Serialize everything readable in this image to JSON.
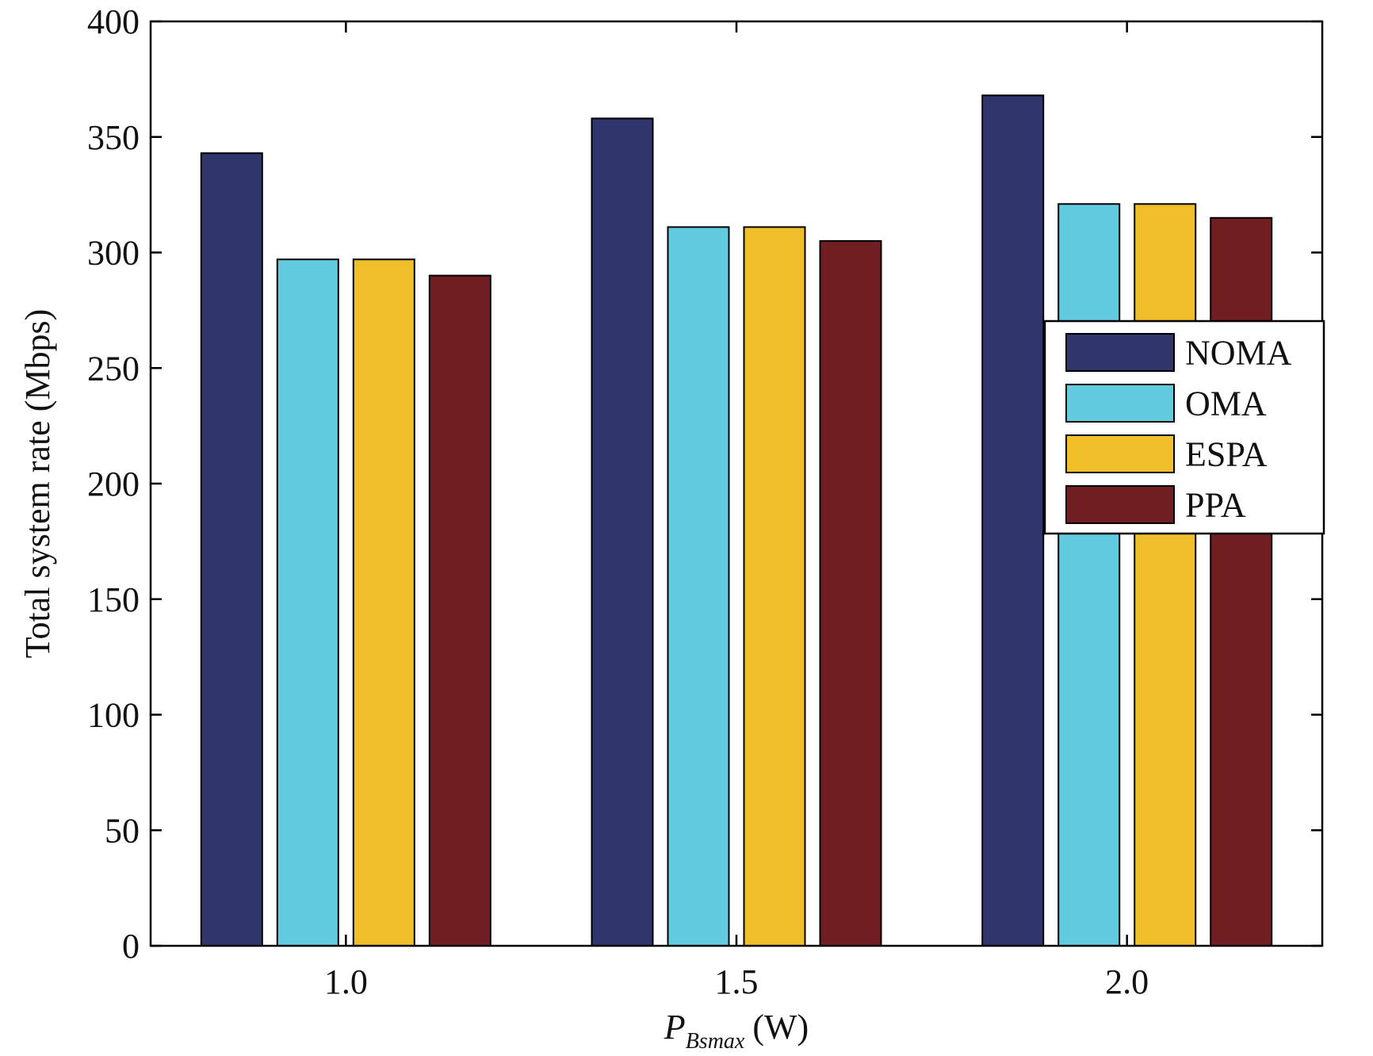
{
  "chart_data": {
    "type": "bar",
    "title": "",
    "xlabel": {
      "main": "P",
      "subscript": "Bsmax",
      "unit": "(W)"
    },
    "ylabel": "Total system rate (Mbps)",
    "categories": [
      "1.0",
      "1.5",
      "2.0"
    ],
    "series": [
      {
        "name": "NOMA",
        "color": "#30356b",
        "values": [
          343,
          358,
          368
        ]
      },
      {
        "name": "OMA",
        "color": "#62cbe0",
        "values": [
          297,
          311,
          321
        ]
      },
      {
        "name": "ESPA",
        "color": "#efbe29",
        "values": [
          297,
          311,
          321
        ]
      },
      {
        "name": "PPA",
        "color": "#711e22",
        "values": [
          290,
          305,
          315
        ]
      }
    ],
    "ylim": [
      0,
      400
    ],
    "yticks": [
      "0",
      "50",
      "100",
      "150",
      "200",
      "250",
      "300",
      "350",
      "400"
    ],
    "grid": false,
    "legend_position": "right"
  }
}
